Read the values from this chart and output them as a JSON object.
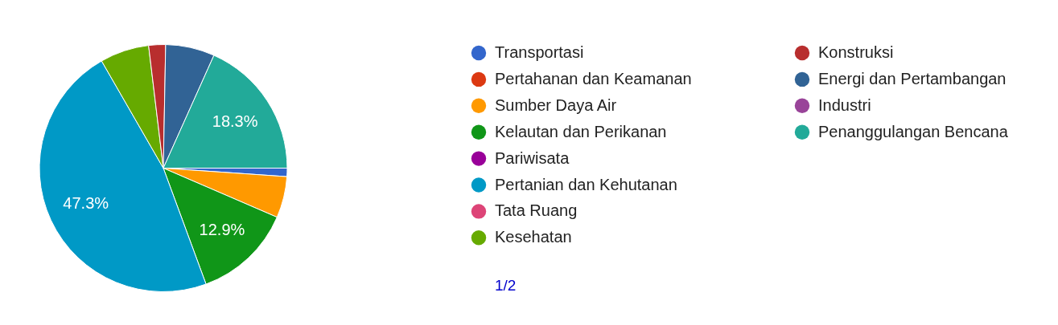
{
  "chart_data": {
    "type": "pie",
    "categories": [
      "Transportasi",
      "Pertahanan dan Keamanan",
      "Sumber Daya Air",
      "Kelautan dan Perikanan",
      "Pariwisata",
      "Pertanian dan Kehutanan",
      "Tata Ruang",
      "Kesehatan",
      "Konstruksi",
      "Energi dan Pertambangan",
      "Industri",
      "Penanggulangan Bencana"
    ],
    "values": [
      1.1,
      0,
      5.4,
      12.9,
      0,
      47.3,
      0,
      6.4,
      2.2,
      6.4,
      0,
      18.3
    ],
    "colors": [
      "#3366cc",
      "#dc3912",
      "#ff9900",
      "#109618",
      "#990099",
      "#0099c6",
      "#dd4477",
      "#66aa00",
      "#b82e2e",
      "#316395",
      "#994499",
      "#22aa99"
    ],
    "value_labels": [
      null,
      null,
      null,
      "12.9%",
      null,
      "47.3%",
      null,
      null,
      null,
      null,
      null,
      "18.3%"
    ],
    "legend": "right",
    "annotations": [
      "1/2"
    ]
  }
}
